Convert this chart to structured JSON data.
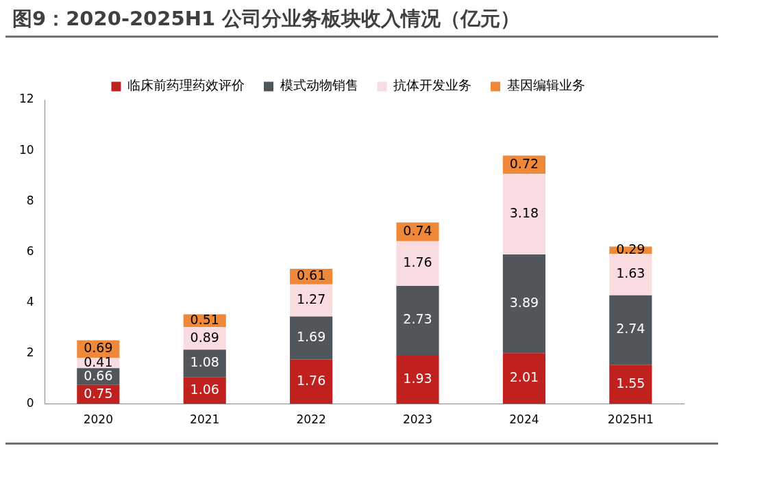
{
  "chart_data": {
    "type": "bar",
    "title": "图9：2020-2025H1 公司分业务板块收入情况（亿元）",
    "categories": [
      "2020",
      "2021",
      "2022",
      "2023",
      "2024",
      "2025H1"
    ],
    "series": [
      {
        "name": "临床前药理药效评价",
        "color": "#c0201e",
        "values": [
          0.75,
          1.06,
          1.76,
          1.93,
          2.01,
          1.55
        ]
      },
      {
        "name": "模式动物销售",
        "color": "#50565a",
        "values": [
          0.66,
          1.08,
          1.69,
          2.73,
          3.89,
          2.74
        ]
      },
      {
        "name": "抗体开发业务",
        "color": "#f9dce0",
        "values": [
          0.41,
          0.89,
          1.27,
          1.76,
          3.18,
          1.63
        ]
      },
      {
        "name": "基因编辑业务",
        "color": "#f0883a",
        "values": [
          0.69,
          0.51,
          0.61,
          0.74,
          0.72,
          0.29
        ]
      }
    ],
    "stacked": true,
    "ylim": [
      0,
      12
    ],
    "yticks": [
      0,
      2,
      4,
      6,
      8,
      10,
      12
    ],
    "grid": false,
    "legend": "top",
    "data_labels": true
  }
}
